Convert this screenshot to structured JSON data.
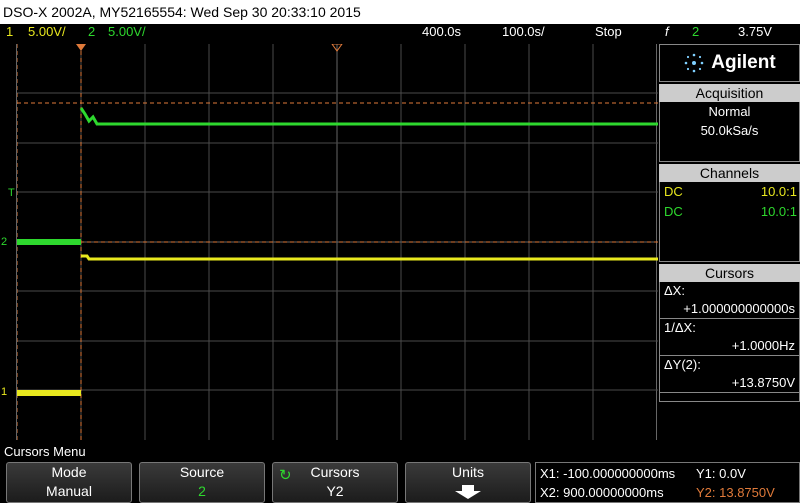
{
  "title": "DSO-X 2002A, MY52165554: Wed Sep 30 20:33:10 2015",
  "status": {
    "ch1_num": "1",
    "ch1_scale": "5.00V/",
    "ch2_num": "2",
    "ch2_scale": "5.00V/",
    "time_delay": "400.0s",
    "time_scale": "100.0s/",
    "run_state": "Stop",
    "trigger_symbol": "f",
    "trigger_channel": "2",
    "trigger_level": "3.75V"
  },
  "brand": {
    "name": "Agilent"
  },
  "acquisition": {
    "header": "Acquisition",
    "mode": "Normal",
    "rate": "50.0kSa/s"
  },
  "channels": {
    "header": "Channels",
    "rows": [
      {
        "coupling": "DC",
        "probe": "10.0:1",
        "color": "#e8e81e"
      },
      {
        "coupling": "DC",
        "probe": "10.0:1",
        "color": "#2ed82e"
      }
    ]
  },
  "cursors": {
    "header": "Cursors",
    "delta_x_label": "ΔX:",
    "delta_x_value": "+1.000000000000s",
    "inv_delta_x_label": "1/ΔX:",
    "inv_delta_x_value": "+1.0000Hz",
    "delta_y_label": "ΔY(2):",
    "delta_y_value": "+13.8750V"
  },
  "markers": {
    "trigger_marker": "T",
    "ch2_marker": "2",
    "ch1_marker": "1"
  },
  "menu": {
    "title": "Cursors Menu",
    "softkeys": [
      {
        "title": "Mode",
        "value": "Manual"
      },
      {
        "title": "Source",
        "value": "2"
      },
      {
        "title": "Cursors",
        "value": "Y2"
      },
      {
        "title": "Units",
        "value": ""
      }
    ]
  },
  "readout": {
    "x1": "X1: -100.000000000ms",
    "x2": "X2: 900.00000000ms",
    "y1": "Y1: 0.0V",
    "y2": "Y2: 13.8750V"
  },
  "colors": {
    "ch1": "#e8e81e",
    "ch2": "#2ed82e",
    "cursor": "#e07a3a",
    "grid": "#4a4a4a"
  }
}
